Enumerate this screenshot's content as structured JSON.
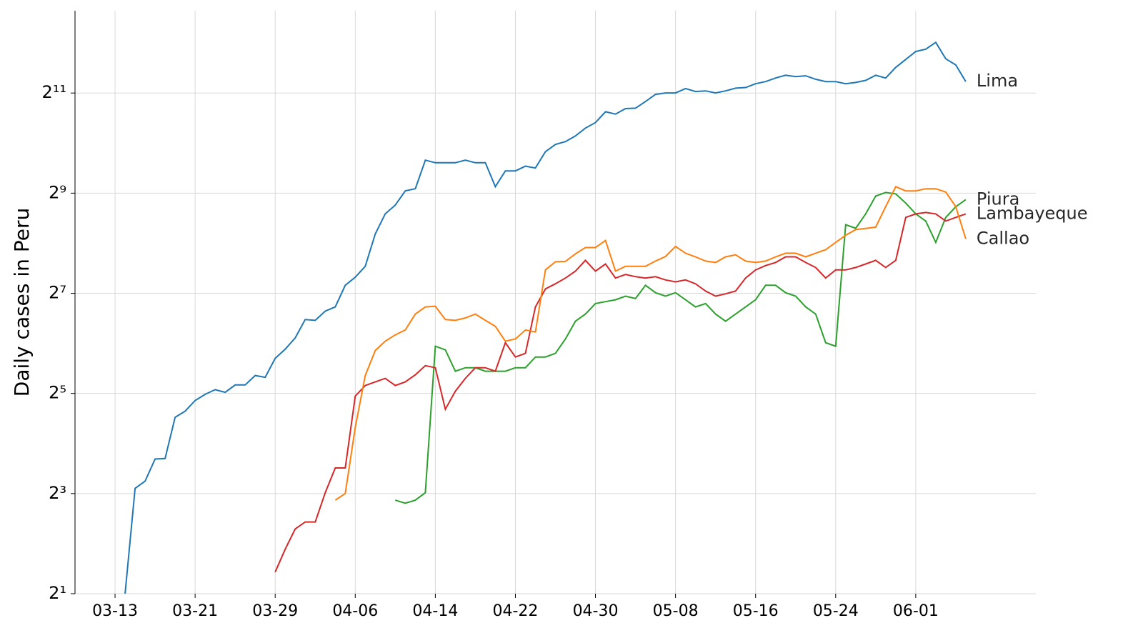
{
  "chart_data": {
    "type": "line",
    "y_label": "Daily cases in Peru",
    "yscale": "log",
    "log_base": 2,
    "grid": true,
    "legend": "line-end",
    "x": [
      "03-14",
      "03-15",
      "03-16",
      "03-17",
      "03-18",
      "03-19",
      "03-20",
      "03-21",
      "03-22",
      "03-23",
      "03-24",
      "03-25",
      "03-26",
      "03-27",
      "03-28",
      "03-29",
      "03-30",
      "03-31",
      "04-01",
      "04-02",
      "04-03",
      "04-04",
      "04-05",
      "04-06",
      "04-07",
      "04-08",
      "04-09",
      "04-10",
      "04-11",
      "04-12",
      "04-13",
      "04-14",
      "04-15",
      "04-16",
      "04-17",
      "04-18",
      "04-19",
      "04-20",
      "04-21",
      "04-22",
      "04-23",
      "04-24",
      "04-25",
      "04-26",
      "04-27",
      "04-28",
      "04-29",
      "04-30",
      "05-01",
      "05-02",
      "05-03",
      "05-04",
      "05-05",
      "05-06",
      "05-07",
      "05-08",
      "05-09",
      "05-10",
      "05-11",
      "05-12",
      "05-13",
      "05-14",
      "05-15",
      "05-16",
      "05-17",
      "05-18",
      "05-19",
      "05-20",
      "05-21",
      "05-22",
      "05-23",
      "05-24",
      "05-25",
      "05-26",
      "05-27",
      "05-28",
      "05-29",
      "05-30",
      "05-31",
      "06-01",
      "06-02",
      "06-03",
      "06-04",
      "06-05",
      "06-06"
    ],
    "xlim": [
      "03-09",
      "06-13"
    ],
    "xticks": [
      "03-13",
      "03-21",
      "03-29",
      "04-06",
      "04-14",
      "04-22",
      "04-30",
      "05-08",
      "05-16",
      "05-24",
      "06-01"
    ],
    "ylim": [
      2,
      6400
    ],
    "yticks": [
      {
        "value": 2,
        "label": "2¹"
      },
      {
        "value": 8,
        "label": "2³"
      },
      {
        "value": 32,
        "label": "2⁵"
      },
      {
        "value": 128,
        "label": "2⁷"
      },
      {
        "value": 512,
        "label": "2⁹"
      },
      {
        "value": 2048,
        "label": "2¹¹"
      }
    ],
    "series": [
      {
        "name": "Lima",
        "color": "#1f77b4",
        "values": [
          2,
          8.6,
          9.5,
          12.9,
          13,
          23,
          25,
          29,
          31.6,
          33.7,
          32.5,
          36,
          36,
          41,
          40,
          52,
          59,
          69,
          89,
          88,
          100,
          106,
          143,
          160,
          186,
          291,
          385,
          434,
          528,
          544,
          808,
          780,
          780,
          780,
          808,
          780,
          780,
          560,
          697,
          697,
          744,
          725,
          909,
          1005,
          1045,
          1130,
          1260,
          1360,
          1580,
          1530,
          1650,
          1660,
          1820,
          2010,
          2050,
          2050,
          2180,
          2090,
          2110,
          2050,
          2110,
          2190,
          2210,
          2330,
          2400,
          2520,
          2620,
          2570,
          2600,
          2480,
          2400,
          2400,
          2330,
          2370,
          2440,
          2620,
          2520,
          2920,
          3260,
          3640,
          3760,
          4130,
          3290,
          3020,
          2400
        ]
      },
      {
        "name": "Piura",
        "color": "#2ca02c",
        "values": [
          null,
          null,
          null,
          null,
          null,
          null,
          null,
          null,
          null,
          null,
          null,
          null,
          null,
          null,
          null,
          null,
          null,
          null,
          null,
          null,
          null,
          null,
          null,
          null,
          null,
          null,
          null,
          7.3,
          7.0,
          7.3,
          8.1,
          61.5,
          58.5,
          43.5,
          45.7,
          45.7,
          43.5,
          43.5,
          43.5,
          45.7,
          45.7,
          53,
          53,
          55.7,
          68,
          87,
          96,
          111,
          114,
          117,
          123,
          119,
          143,
          129,
          123,
          129,
          117,
          106,
          111,
          96,
          87,
          96,
          106,
          117,
          143,
          143,
          129,
          123,
          106,
          96,
          64.6,
          61.5,
          331,
          315,
          384,
          492,
          517,
          507,
          446,
          384,
          348,
          259,
          366,
          424,
          468
        ]
      },
      {
        "name": "Lambayeque",
        "color": "#d62728",
        "values": [
          null,
          null,
          null,
          null,
          null,
          null,
          null,
          null,
          null,
          null,
          null,
          null,
          null,
          null,
          null,
          2.7,
          3.7,
          4.9,
          5.4,
          5.4,
          8.1,
          11.4,
          11.4,
          30.8,
          35.7,
          37.5,
          39.4,
          35.7,
          37.5,
          41.4,
          47,
          45.7,
          25.7,
          33,
          39.4,
          45.7,
          45.7,
          43.5,
          64.6,
          53,
          55.7,
          106,
          136,
          146,
          158,
          174,
          202,
          174,
          192,
          158,
          166,
          161,
          158,
          161,
          154,
          150,
          154,
          146,
          132,
          123,
          127,
          132,
          158,
          177,
          188,
          196,
          212,
          212,
          196,
          183,
          158,
          177,
          177,
          183,
          192,
          202,
          183,
          202,
          366,
          384,
          392,
          384,
          348,
          366,
          384
        ]
      },
      {
        "name": "Callao",
        "color": "#ff7f0e",
        "values": [
          null,
          null,
          null,
          null,
          null,
          null,
          null,
          null,
          null,
          null,
          null,
          null,
          null,
          null,
          null,
          null,
          null,
          null,
          null,
          null,
          null,
          7.3,
          8,
          20,
          41,
          58,
          66,
          72,
          77,
          96,
          106,
          107,
          89,
          88,
          91,
          96,
          88,
          81,
          66,
          68,
          77,
          75,
          177,
          198,
          199,
          221,
          241,
          241,
          266,
          174,
          186,
          186,
          186,
          200,
          213,
          245,
          223,
          212,
          200,
          196,
          212,
          218,
          200,
          196,
          200,
          212,
          223,
          223,
          212,
          223,
          234,
          259,
          286,
          309,
          314,
          320,
          425,
          560,
          528,
          528,
          544,
          544,
          520,
          425,
          272
        ]
      }
    ]
  }
}
